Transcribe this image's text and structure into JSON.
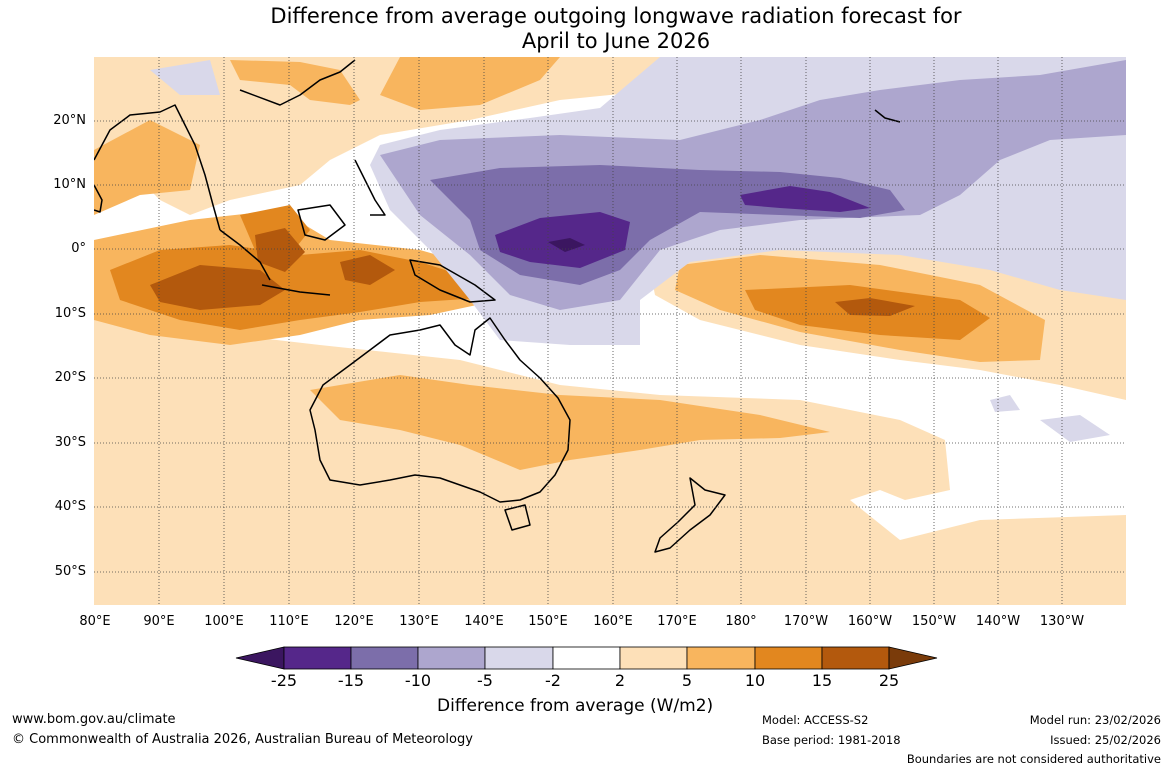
{
  "title": {
    "line1": "Difference from average outgoing longwave radiation forecast for",
    "line2": "April to June 2026"
  },
  "axes": {
    "lat_labels": [
      "20°N",
      "10°N",
      "0°",
      "10°S",
      "20°S",
      "30°S",
      "40°S",
      "50°S"
    ],
    "lon_labels": [
      "80°E",
      "90°E",
      "100°E",
      "110°E",
      "120°E",
      "130°E",
      "140°E",
      "150°E",
      "160°E",
      "170°E",
      "180°",
      "170°W",
      "160°W",
      "150°W",
      "140°W",
      "130°W"
    ]
  },
  "colorbar": {
    "title": "Difference from average (W/m2)",
    "tick_labels": [
      "-25",
      "-15",
      "-10",
      "-5",
      "-2",
      "2",
      "5",
      "10",
      "15",
      "25"
    ],
    "colors": [
      "#3b1660",
      "#55278a",
      "#7c6eaa",
      "#ada6ce",
      "#d9d8ea",
      "#ffffff",
      "#fde0b8",
      "#f8b55e",
      "#e2871f",
      "#b3590d",
      "#7a3b0a"
    ]
  },
  "footer": {
    "website": "www.bom.gov.au/climate",
    "copyright": "© Commonwealth of Australia 2026, Australian Bureau of Meteorology",
    "model": "Model: ACCESS-S2",
    "base_period": "Base period: 1981-2018",
    "model_run": "Model run: 23/02/2026",
    "issued": "Issued: 25/02/2026",
    "disclaimer": "Boundaries are not considered authoritative"
  }
}
